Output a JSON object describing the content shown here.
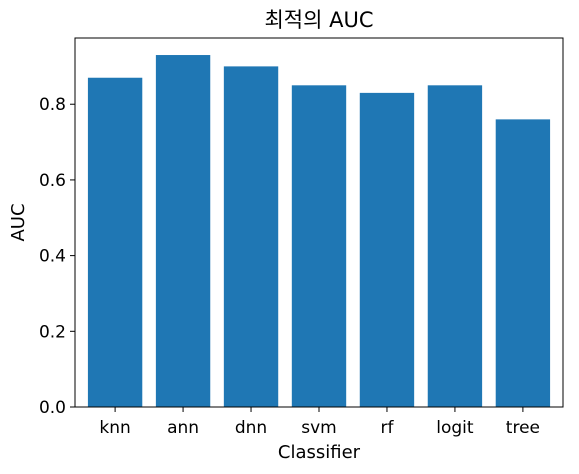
{
  "chart_data": {
    "type": "bar",
    "title": "최적의 AUC",
    "xlabel": "Classifier",
    "ylabel": "AUC",
    "categories": [
      "knn",
      "ann",
      "dnn",
      "svm",
      "rf",
      "logit",
      "tree"
    ],
    "values": [
      0.87,
      0.93,
      0.9,
      0.85,
      0.83,
      0.85,
      0.76
    ],
    "ylim": [
      0,
      0.975
    ],
    "yticks": [
      0.0,
      0.2,
      0.4,
      0.6,
      0.8
    ],
    "ytick_labels": [
      "0.0",
      "0.2",
      "0.4",
      "0.6",
      "0.8"
    ],
    "grid": false,
    "bar_color": "#1f77b4"
  }
}
